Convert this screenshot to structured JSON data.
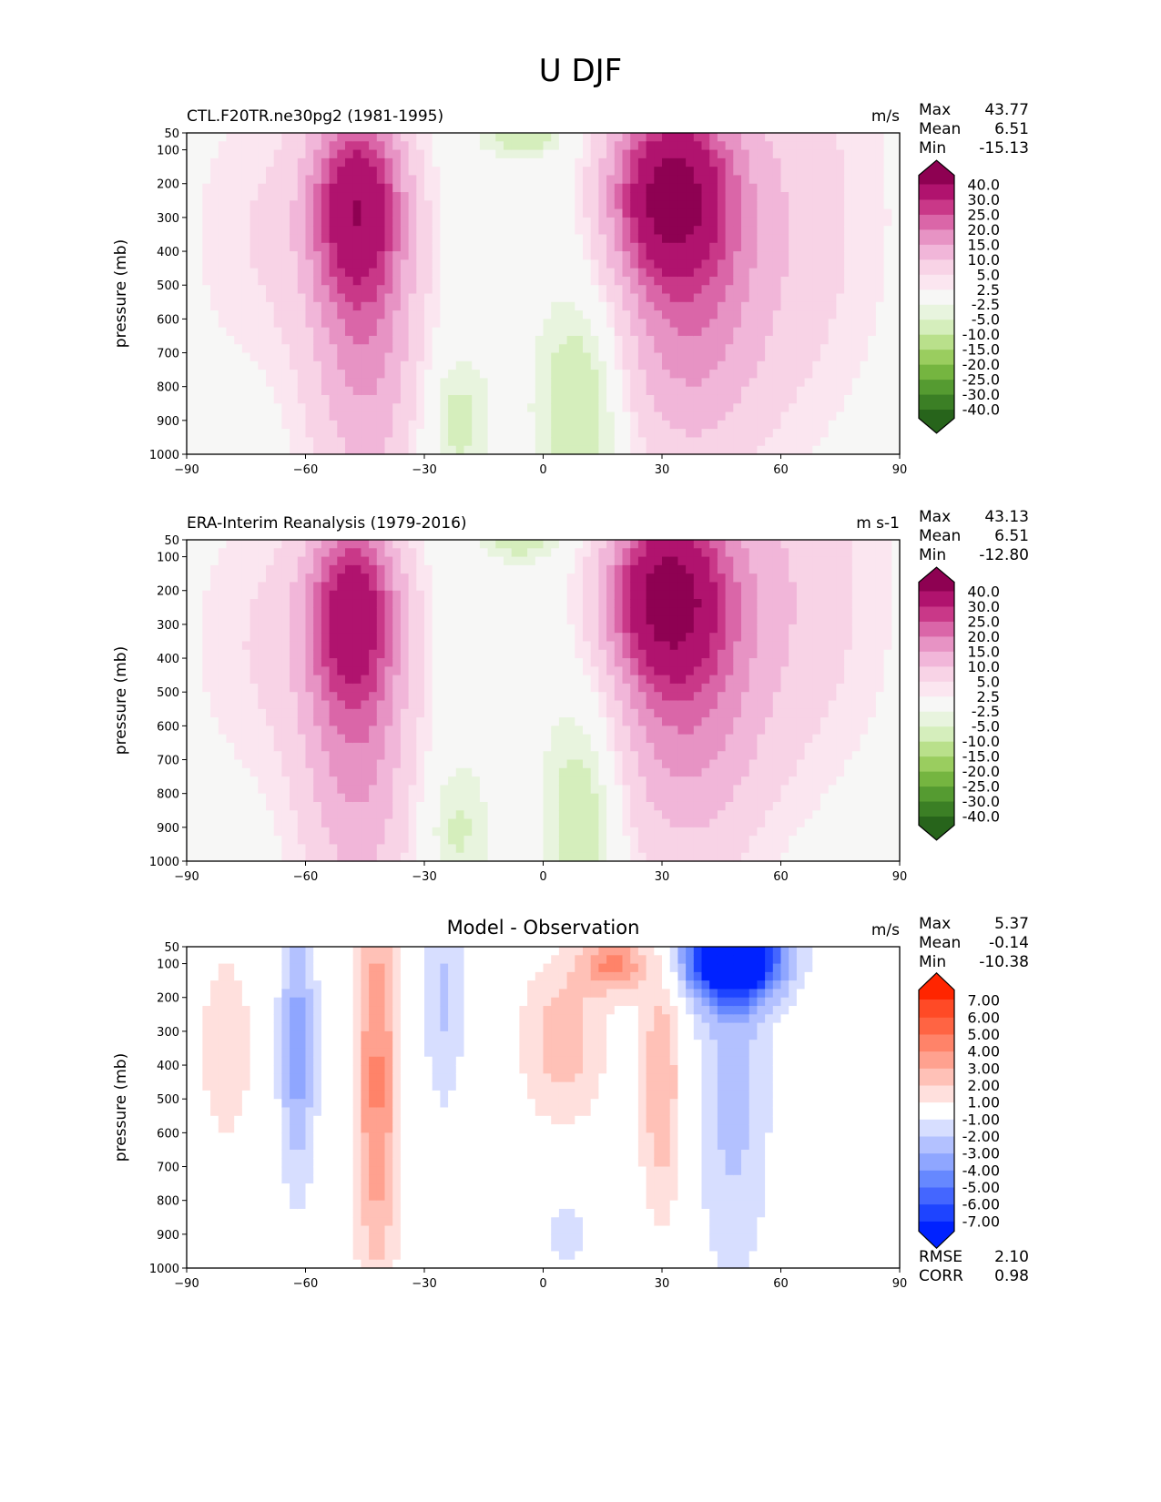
{
  "suptitle": "U DJF",
  "chart_data": [
    {
      "type": "contourf",
      "title_left": "CTL.F20TR.ne30pg2 (1981-1995)",
      "title_center": "",
      "units": "m/s",
      "ylabel": "pressure (mb)",
      "xlim": [
        -90,
        90
      ],
      "ylim": [
        1000,
        50
      ],
      "xticks": [
        "−90",
        "−60",
        "−30",
        "0",
        "30",
        "60",
        "90"
      ],
      "yticks": [
        "50",
        "100",
        "200",
        "300",
        "400",
        "500",
        "600",
        "700",
        "800",
        "900",
        "1000"
      ],
      "stats": [
        {
          "label": "Max",
          "value": "43.77"
        },
        {
          "label": "Mean",
          "value": "6.51"
        },
        {
          "label": "Min",
          "value": "-15.13"
        }
      ],
      "levels": [
        -40,
        -30,
        -25,
        -20,
        -15,
        -10,
        -5,
        -2.5,
        2.5,
        5,
        10,
        15,
        20,
        25,
        30,
        40
      ],
      "level_labels": [
        "-40.0",
        "-30.0",
        "-25.0",
        "-20.0",
        "-15.0",
        "-10.0",
        "-5.0",
        "-2.5",
        "2.5",
        "5.0",
        "10.0",
        "15.0",
        "20.0",
        "25.0",
        "30.0",
        "40.0"
      ],
      "colors": [
        "#27641b",
        "#3b7f25",
        "#559b31",
        "#75b540",
        "#9acd5f",
        "#b9e08b",
        "#d5eebc",
        "#e8f4de",
        "#f7f7f6",
        "#fbe6f0",
        "#f8d3e6",
        "#f1b6d9",
        "#e793c4",
        "#da66a8",
        "#c93888",
        "#b0136e",
        "#8e0152"
      ],
      "features": [
        {
          "lat": -47,
          "p": 250,
          "amp": 30,
          "slat": 8,
          "sp": 200
        },
        {
          "lat": -45,
          "p": 650,
          "amp": 16,
          "slat": 10,
          "sp": 380
        },
        {
          "lat": 32,
          "p": 220,
          "amp": 36,
          "slat": 10,
          "sp": 180
        },
        {
          "lat": 35,
          "p": 600,
          "amp": 14,
          "slat": 13,
          "sp": 320
        },
        {
          "lat": 55,
          "p": 300,
          "amp": 9,
          "slat": 20,
          "sp": 450
        },
        {
          "lat": -70,
          "p": 350,
          "amp": 5,
          "slat": 14,
          "sp": 300
        },
        {
          "lat": 10,
          "p": 850,
          "amp": -10,
          "slat": 8,
          "sp": 250
        },
        {
          "lat": -22,
          "p": 900,
          "amp": -7,
          "slat": 6,
          "sp": 150
        },
        {
          "lat": -5,
          "p": 50,
          "amp": -8,
          "slat": 8,
          "sp": 50
        }
      ]
    },
    {
      "type": "contourf",
      "title_left": "ERA-Interim Reanalysis (1979-2016)",
      "title_center": "",
      "units": "m s-1",
      "ylabel": "pressure (mb)",
      "xlim": [
        -90,
        90
      ],
      "ylim": [
        1000,
        50
      ],
      "xticks": [
        "−90",
        "−60",
        "−30",
        "0",
        "30",
        "60",
        "90"
      ],
      "yticks": [
        "50",
        "100",
        "200",
        "300",
        "400",
        "500",
        "600",
        "700",
        "800",
        "900",
        "1000"
      ],
      "stats": [
        {
          "label": "Max",
          "value": "43.13"
        },
        {
          "label": "Mean",
          "value": "6.51"
        },
        {
          "label": "Min",
          "value": "-12.80"
        }
      ],
      "levels": [
        -40,
        -30,
        -25,
        -20,
        -15,
        -10,
        -5,
        -2.5,
        2.5,
        5,
        10,
        15,
        20,
        25,
        30,
        40
      ],
      "level_labels": [
        "-40.0",
        "-30.0",
        "-25.0",
        "-20.0",
        "-15.0",
        "-10.0",
        "-5.0",
        "-2.5",
        "2.5",
        "5.0",
        "10.0",
        "15.0",
        "20.0",
        "25.0",
        "30.0",
        "40.0"
      ],
      "colors": [
        "#27641b",
        "#3b7f25",
        "#559b31",
        "#75b540",
        "#9acd5f",
        "#b9e08b",
        "#d5eebc",
        "#e8f4de",
        "#f7f7f6",
        "#fbe6f0",
        "#f8d3e6",
        "#f1b6d9",
        "#e793c4",
        "#da66a8",
        "#c93888",
        "#b0136e",
        "#8e0152"
      ],
      "features": [
        {
          "lat": -48,
          "p": 250,
          "amp": 27,
          "slat": 8,
          "sp": 200
        },
        {
          "lat": -47,
          "p": 650,
          "amp": 16,
          "slat": 10,
          "sp": 380
        },
        {
          "lat": 31,
          "p": 210,
          "amp": 36,
          "slat": 10,
          "sp": 180
        },
        {
          "lat": 35,
          "p": 600,
          "amp": 14,
          "slat": 13,
          "sp": 320
        },
        {
          "lat": 55,
          "p": 200,
          "amp": 10,
          "slat": 20,
          "sp": 400
        },
        {
          "lat": -70,
          "p": 350,
          "amp": 5,
          "slat": 14,
          "sp": 300
        },
        {
          "lat": 10,
          "p": 850,
          "amp": -9,
          "slat": 7,
          "sp": 250
        },
        {
          "lat": -22,
          "p": 900,
          "amp": -6,
          "slat": 6,
          "sp": 150
        },
        {
          "lat": -5,
          "p": 50,
          "amp": -7,
          "slat": 8,
          "sp": 50
        }
      ]
    },
    {
      "type": "contourf",
      "title_left": "",
      "title_center": "Model - Observation",
      "units": "m/s",
      "ylabel": "pressure (mb)",
      "xlim": [
        -90,
        90
      ],
      "ylim": [
        1000,
        50
      ],
      "xticks": [
        "−90",
        "−60",
        "−30",
        "0",
        "30",
        "60",
        "90"
      ],
      "yticks": [
        "50",
        "100",
        "200",
        "300",
        "400",
        "500",
        "600",
        "700",
        "800",
        "900",
        "1000"
      ],
      "stats": [
        {
          "label": "Max",
          "value": "5.37"
        },
        {
          "label": "Mean",
          "value": "-0.14"
        },
        {
          "label": "Min",
          "value": "-10.38"
        }
      ],
      "extra_stats": [
        {
          "label": "RMSE",
          "value": "2.10"
        },
        {
          "label": "CORR",
          "value": "0.98"
        }
      ],
      "levels": [
        -7,
        -6,
        -5,
        -4,
        -3,
        -2,
        -1,
        1,
        2,
        3,
        4,
        5,
        6,
        7
      ],
      "level_labels": [
        "-7.00",
        "-6.00",
        "-5.00",
        "-4.00",
        "-3.00",
        "-2.00",
        "-1.00",
        "1.00",
        "2.00",
        "3.00",
        "4.00",
        "5.00",
        "6.00",
        "7.00"
      ],
      "colors": [
        "#0022ff",
        "#1e44ff",
        "#4466ff",
        "#6688ff",
        "#8fa6ff",
        "#b3c1ff",
        "#d7deff",
        "#ffffff",
        "#ffe0dd",
        "#ffc1b7",
        "#ffa18f",
        "#ff8369",
        "#ff6443",
        "#ff4a26",
        "#ff2500"
      ],
      "features": [
        {
          "lat": -42,
          "p": 450,
          "amp": 4.2,
          "slat": 4,
          "sp": 450
        },
        {
          "lat": -62,
          "p": 350,
          "amp": -3.5,
          "slat": 3.5,
          "sp": 300
        },
        {
          "lat": -80,
          "p": 350,
          "amp": 1.6,
          "slat": 6,
          "sp": 250
        },
        {
          "lat": 5,
          "p": 330,
          "amp": 2.6,
          "slat": 8,
          "sp": 180
        },
        {
          "lat": 30,
          "p": 450,
          "amp": 3,
          "slat": 4,
          "sp": 300
        },
        {
          "lat": 18,
          "p": 100,
          "amp": 4,
          "slat": 6,
          "sp": 60
        },
        {
          "lat": 48,
          "p": 80,
          "amp": -10,
          "slat": 9,
          "sp": 90
        },
        {
          "lat": 48,
          "p": 450,
          "amp": -2.4,
          "slat": 7,
          "sp": 450
        },
        {
          "lat": -25,
          "p": 200,
          "amp": -2.2,
          "slat": 4,
          "sp": 250
        },
        {
          "lat": 6,
          "p": 900,
          "amp": -1.6,
          "slat": 5,
          "sp": 80
        }
      ]
    }
  ]
}
